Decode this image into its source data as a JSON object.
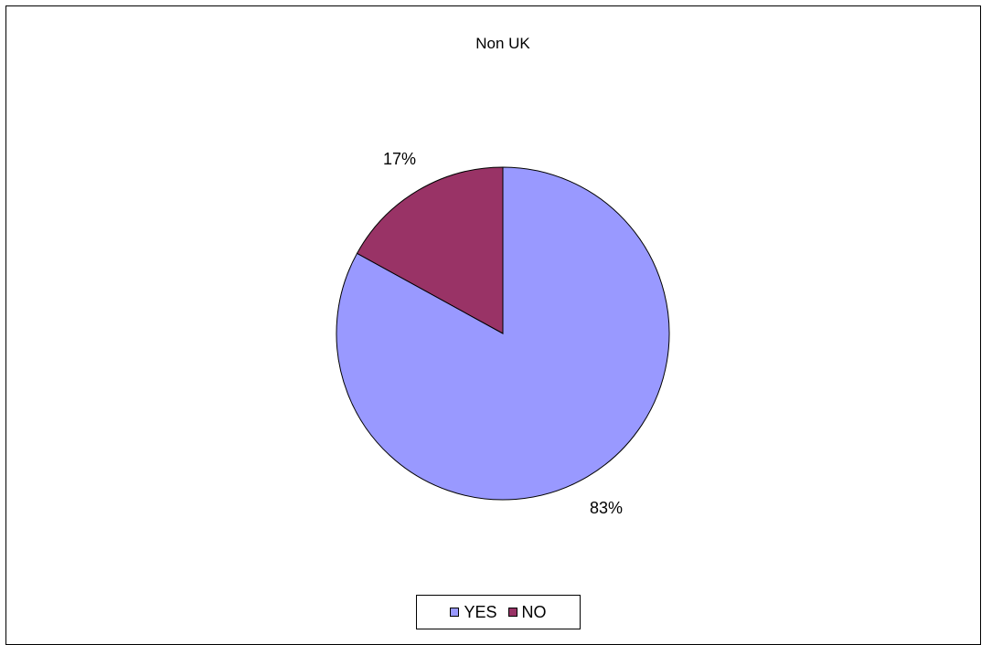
{
  "chart_data": {
    "type": "pie",
    "title": "Non UK",
    "categories": [
      "YES",
      "NO"
    ],
    "values": [
      83,
      17
    ],
    "labels": [
      "83%",
      "17%"
    ],
    "colors": [
      "#9999ff",
      "#993366"
    ],
    "legend_position": "bottom"
  }
}
